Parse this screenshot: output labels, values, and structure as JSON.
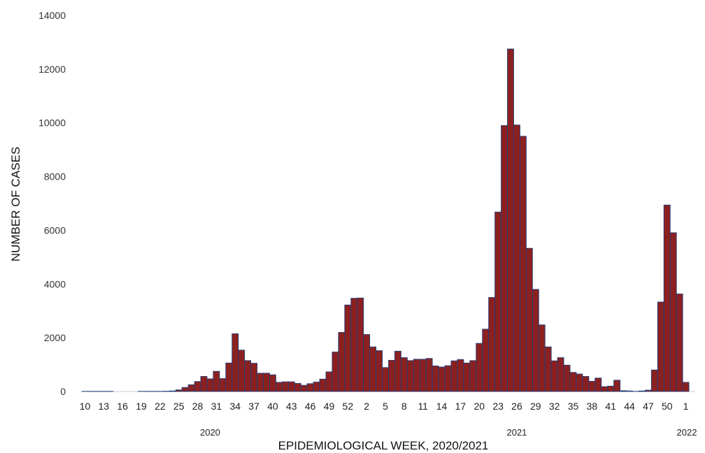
{
  "chart_data": {
    "type": "bar",
    "title": "",
    "xlabel": "EPIDEMIOLOGICAL WEEK, 2020/2021",
    "ylabel": "NUMBER OF CASES",
    "ylim": [
      0,
      14000
    ],
    "yticks": [
      0,
      2000,
      4000,
      6000,
      8000,
      10000,
      12000,
      14000
    ],
    "ytick_labels": [
      "0",
      "2000",
      "4000",
      "6000",
      "8000",
      "10000",
      "12000",
      "14000"
    ],
    "categories": [
      "10",
      "11",
      "12",
      "13",
      "14",
      "15",
      "16",
      "17",
      "18",
      "19",
      "20",
      "21",
      "22",
      "23",
      "24",
      "25",
      "26",
      "27",
      "28",
      "29",
      "30",
      "31",
      "32",
      "33",
      "34",
      "35",
      "36",
      "37",
      "38",
      "39",
      "40",
      "41",
      "42",
      "43",
      "44",
      "45",
      "46",
      "47",
      "48",
      "49",
      "50",
      "51",
      "52",
      "53",
      "1",
      "2",
      "3",
      "4",
      "5",
      "6",
      "7",
      "8",
      "9",
      "10",
      "11",
      "12",
      "13",
      "14",
      "15",
      "16",
      "17",
      "18",
      "19",
      "20",
      "21",
      "22",
      "23",
      "24",
      "25",
      "26",
      "27",
      "28",
      "29",
      "30",
      "31",
      "32",
      "33",
      "34",
      "35",
      "36",
      "37",
      "38",
      "39",
      "40",
      "41",
      "42",
      "43",
      "44",
      "45",
      "46",
      "47",
      "48",
      "49",
      "50",
      "51",
      "52",
      "1",
      "2"
    ],
    "values": [
      5,
      5,
      5,
      5,
      5,
      0,
      0,
      0,
      0,
      5,
      5,
      5,
      5,
      10,
      20,
      60,
      150,
      250,
      370,
      560,
      470,
      750,
      480,
      1060,
      2150,
      1540,
      1150,
      1050,
      680,
      680,
      620,
      340,
      360,
      360,
      300,
      230,
      290,
      350,
      460,
      730,
      1470,
      2200,
      3220,
      3470,
      3480,
      2120,
      1660,
      1520,
      890,
      1160,
      1500,
      1260,
      1150,
      1200,
      1200,
      1230,
      950,
      910,
      960,
      1140,
      1190,
      1060,
      1150,
      1790,
      2320,
      3500,
      6680,
      9900,
      12750,
      9920,
      9500,
      5330,
      3800,
      2480,
      1660,
      1140,
      1260,
      980,
      710,
      650,
      560,
      380,
      500,
      180,
      200,
      420,
      30,
      20,
      5,
      20,
      50,
      800,
      3330,
      6940,
      5910,
      3630,
      340,
      0
    ],
    "x_tick_labels": [
      "10",
      "13",
      "16",
      "19",
      "22",
      "25",
      "28",
      "31",
      "34",
      "37",
      "40",
      "43",
      "46",
      "49",
      "52",
      "2",
      "5",
      "8",
      "11",
      "14",
      "17",
      "20",
      "23",
      "26",
      "29",
      "32",
      "35",
      "38",
      "41",
      "44",
      "47",
      "50",
      "1"
    ],
    "x_tick_indices": [
      0,
      3,
      6,
      9,
      12,
      15,
      18,
      21,
      24,
      27,
      30,
      33,
      36,
      39,
      42,
      45,
      48,
      51,
      54,
      57,
      60,
      63,
      66,
      69,
      72,
      75,
      78,
      81,
      84,
      87,
      90,
      93,
      96
    ],
    "year_labels": [
      {
        "label": "2020",
        "index": 20
      },
      {
        "label": "2021",
        "index": 69
      },
      {
        "label": "2022",
        "index": 97
      }
    ],
    "bar_color": "#8b2020",
    "bar_edge_color": "#1f3f7a",
    "grid": false
  }
}
